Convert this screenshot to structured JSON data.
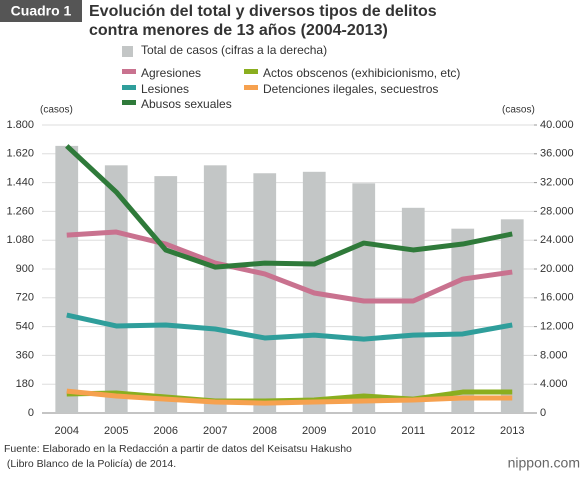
{
  "chart_data": {
    "type": "bar-line",
    "badge": "Cuadro 1",
    "title_lines": [
      "Evolución del total y diversos tipos de delitos",
      "contra menores de 13 años (2004-2013)"
    ],
    "y_label": "(casos)",
    "y2_label": "(casos)",
    "categories": [
      "2004",
      "2005",
      "2006",
      "2007",
      "2008",
      "2009",
      "2010",
      "2011",
      "2012",
      "2013"
    ],
    "series": [
      {
        "name": "Total de casos (cifras a la derecha)",
        "type": "bar",
        "axis": "y2",
        "color": "#c3c6c6",
        "values": [
          37100,
          34400,
          32900,
          34400,
          33300,
          33500,
          31900,
          28500,
          25600,
          26900
        ]
      },
      {
        "name": "Agresiones",
        "type": "line",
        "color": "#c9728f",
        "values": [
          1112,
          1131,
          1056,
          937,
          869,
          750,
          700,
          700,
          837,
          881
        ]
      },
      {
        "name": "Lesiones",
        "type": "line",
        "color": "#2f9e9b",
        "values": [
          612,
          544,
          550,
          525,
          469,
          487,
          462,
          487,
          494,
          550
        ]
      },
      {
        "name": "Abusos sexuales",
        "type": "line",
        "color": "#2f7a3a",
        "values": [
          1669,
          1381,
          1019,
          912,
          937,
          931,
          1062,
          1019,
          1056,
          1119
        ]
      },
      {
        "name": "Actos obscenos (exhibicionismo, etc)",
        "type": "line",
        "color": "#8aae1f",
        "values": [
          119,
          125,
          100,
          75,
          75,
          81,
          106,
          87,
          131,
          131
        ]
      },
      {
        "name": "Detenciones ilegales, secuestros",
        "type": "line",
        "color": "#f6a14f",
        "values": [
          137,
          106,
          87,
          69,
          62,
          69,
          75,
          81,
          94,
          94
        ]
      }
    ],
    "ylim": [
      0,
      1800
    ],
    "yticks": [
      0,
      180,
      360,
      540,
      720,
      900,
      {
        "value": 1080,
        "label": "1.080"
      },
      {
        "value": 1260,
        "label": "1.260"
      },
      {
        "value": 1440,
        "label": "1.440"
      },
      {
        "value": 1620,
        "label": "1.620"
      },
      {
        "value": 1800,
        "label": "1.800"
      }
    ],
    "y2lim": [
      0,
      40000
    ],
    "y2ticks": [
      0,
      {
        "value": 4000,
        "label": "4.000"
      },
      {
        "value": 8000,
        "label": "8.000"
      },
      {
        "value": 12000,
        "label": "12.000"
      },
      {
        "value": 16000,
        "label": "16.000"
      },
      {
        "value": 20000,
        "label": "20.000"
      },
      {
        "value": 24000,
        "label": "24.000"
      },
      {
        "value": 28000,
        "label": "28.000"
      },
      {
        "value": 32000,
        "label": "32.000"
      },
      {
        "value": 36000,
        "label": "36.000"
      },
      {
        "value": 40000,
        "label": "40.000"
      }
    ],
    "grid": true,
    "source_lines": [
      "Fuente: Elaborado en la Redacción a partir de datos del Keisatsu Hakusho",
      " (Libro Blanco de la Policía) de 2014."
    ],
    "logo": "nippon.com"
  }
}
